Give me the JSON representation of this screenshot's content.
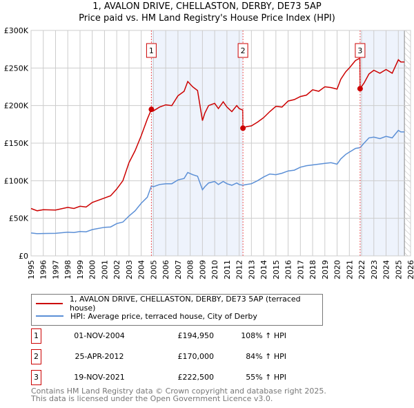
{
  "title_line1": "1, AVALON DRIVE, CHELLASTON, DERBY, DE73 5AP",
  "title_line2": "Price paid vs. HM Land Registry's House Price Index (HPI)",
  "chart_data": {
    "type": "line",
    "title": "1, AVALON DRIVE, CHELLASTON, DERBY, DE73 5AP - Price paid vs. HM Land Registry's House Price Index (HPI)",
    "xlim": [
      1995,
      2026
    ],
    "ylim": [
      0,
      300000
    ],
    "yticks": [
      0,
      50000,
      100000,
      150000,
      200000,
      250000,
      300000
    ],
    "ytick_labels": [
      "£0",
      "£50K",
      "£100K",
      "£150K",
      "£200K",
      "£250K",
      "£300K"
    ],
    "xticks": [
      "1995",
      "1996",
      "1997",
      "1998",
      "1999",
      "2000",
      "2001",
      "2002",
      "2003",
      "2004",
      "2005",
      "2006",
      "2007",
      "2008",
      "2009",
      "2010",
      "2011",
      "2012",
      "2013",
      "2014",
      "2015",
      "2016",
      "2017",
      "2018",
      "2019",
      "2020",
      "2021",
      "2022",
      "2023",
      "2024",
      "2025",
      "2026"
    ],
    "grid": true,
    "shaded_ranges": [
      [
        2004.83,
        2012.31
      ],
      [
        2021.88,
        2025.5
      ]
    ],
    "hatched_from": 2025.5,
    "series": [
      {
        "name": "1, AVALON DRIVE, CHELLASTON, DERBY, DE73 5AP (terraced house)",
        "color": "#cc0000",
        "x": [
          1995,
          1995.5,
          1996,
          1997,
          1998,
          1998.5,
          1999,
          1999.5,
          2000,
          2001,
          2001.5,
          2002,
          2002.5,
          2003,
          2003.5,
          2004,
          2004.5,
          2004.83,
          2005,
          2005.5,
          2006,
          2006.5,
          2007,
          2007.5,
          2007.8,
          2008.2,
          2008.6,
          2009,
          2009.2,
          2009.5,
          2010,
          2010.3,
          2010.7,
          2011,
          2011.4,
          2011.8,
          2012,
          2012.29,
          2012.31,
          2012.6,
          2013,
          2013.5,
          2014,
          2014.5,
          2015,
          2015.5,
          2016,
          2016.5,
          2017,
          2017.5,
          2018,
          2018.5,
          2019,
          2019.5,
          2020,
          2020.3,
          2020.7,
          2021,
          2021.5,
          2021.86,
          2021.88,
          2022.2,
          2022.6,
          2023,
          2023.5,
          2024,
          2024.5,
          2025,
          2025.2,
          2025.5
        ],
        "y": [
          63000,
          60000,
          61500,
          61000,
          64500,
          63000,
          66000,
          65000,
          71000,
          77000,
          80000,
          89000,
          100000,
          124000,
          140000,
          160000,
          182000,
          194950,
          193000,
          198000,
          201000,
          200000,
          213000,
          219000,
          232000,
          225000,
          220000,
          180000,
          190000,
          200000,
          203000,
          196000,
          205000,
          198000,
          192000,
          200000,
          196000,
          194000,
          170000,
          172000,
          173000,
          178000,
          184000,
          192000,
          199000,
          198000,
          206000,
          208000,
          212000,
          214000,
          221000,
          219000,
          225000,
          224000,
          222000,
          235000,
          245000,
          250000,
          260000,
          263000,
          222500,
          230000,
          242000,
          247000,
          243000,
          248000,
          243000,
          261000,
          258000,
          258000
        ]
      },
      {
        "name": "HPI: Average price, terraced house, City of Derby",
        "color": "#5b8fd6",
        "x": [
          1995,
          1995.5,
          1996,
          1997,
          1998,
          1998.5,
          1999,
          1999.5,
          2000,
          2001,
          2001.5,
          2002,
          2002.5,
          2003,
          2003.5,
          2004,
          2004.5,
          2004.83,
          2005,
          2005.5,
          2006,
          2006.5,
          2007,
          2007.5,
          2007.8,
          2008.2,
          2008.6,
          2009,
          2009.2,
          2009.5,
          2010,
          2010.3,
          2010.7,
          2011,
          2011.4,
          2011.8,
          2012,
          2012.3,
          2012.6,
          2013,
          2013.5,
          2014,
          2014.5,
          2015,
          2015.5,
          2016,
          2016.5,
          2017,
          2017.5,
          2018,
          2018.5,
          2019,
          2019.5,
          2020,
          2020.3,
          2020.7,
          2021,
          2021.5,
          2021.88,
          2022.2,
          2022.6,
          2023,
          2023.5,
          2024,
          2024.5,
          2025,
          2025.2,
          2025.5
        ],
        "y": [
          30500,
          29500,
          29800,
          30000,
          31500,
          31000,
          32500,
          32000,
          35000,
          38000,
          38500,
          43000,
          45000,
          53000,
          60000,
          70000,
          78000,
          93000,
          92000,
          95000,
          96000,
          96000,
          101000,
          103000,
          111000,
          108000,
          106000,
          88000,
          92000,
          97000,
          99000,
          95000,
          99000,
          96000,
          94000,
          97000,
          95000,
          94000,
          95000,
          96000,
          100000,
          105000,
          109000,
          108000,
          110000,
          113000,
          114000,
          118000,
          120000,
          121000,
          122000,
          123000,
          124000,
          122000,
          129000,
          135000,
          138000,
          143000,
          144000,
          150000,
          157000,
          158000,
          156000,
          159000,
          157000,
          167000,
          165000,
          165000
        ]
      }
    ],
    "sales": [
      {
        "label": "1",
        "x": 2004.83,
        "y": 194950
      },
      {
        "label": "2",
        "x": 2012.31,
        "y": 170000
      },
      {
        "label": "3",
        "x": 2021.88,
        "y": 222500
      }
    ]
  },
  "legend": {
    "property": "1, AVALON DRIVE, CHELLASTON, DERBY, DE73 5AP (terraced house)",
    "hpi": "HPI: Average price, terraced house, City of Derby"
  },
  "transactions": [
    {
      "num": "1",
      "date": "01-NOV-2004",
      "price": "£194,950",
      "pct": "108% ↑ HPI"
    },
    {
      "num": "2",
      "date": "25-APR-2012",
      "price": "£170,000",
      "pct": "84% ↑ HPI"
    },
    {
      "num": "3",
      "date": "19-NOV-2021",
      "price": "£222,500",
      "pct": "55% ↑ HPI"
    }
  ],
  "footer": {
    "line1": "Contains HM Land Registry data © Crown copyright and database right 2025.",
    "line2": "This data is licensed under the Open Government Licence v3.0."
  }
}
